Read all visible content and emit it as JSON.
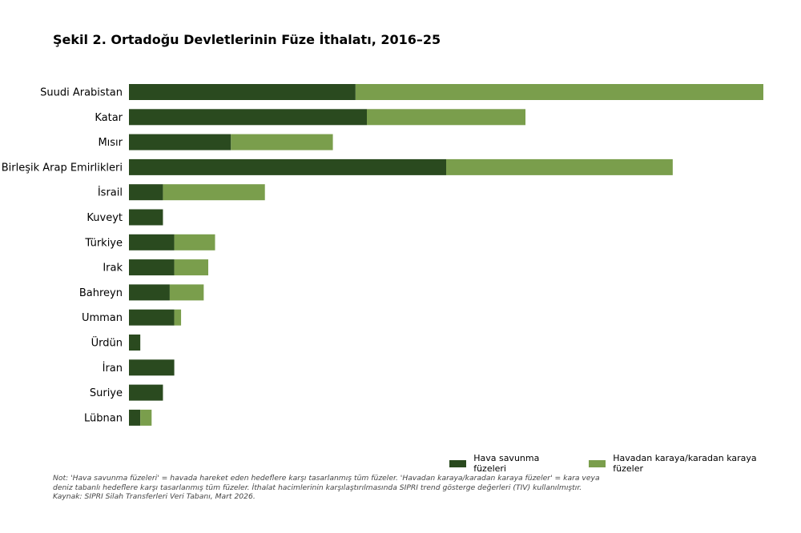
{
  "title": "Şekil 2. Ortadoğu Devletlerinin Füze İthalatı, 2016–25",
  "colors": {
    "air_defense": "#2a4a1f",
    "surface": "#7a9e4c"
  },
  "chart_data": {
    "type": "bar",
    "orientation": "horizontal",
    "stacked": true,
    "title": "Şekil 2. Ortadoğu Devletlerinin Füze İthalatı, 2016–25",
    "xlabel": "",
    "ylabel": "",
    "xlim": [
      0,
      56
    ],
    "grid": false,
    "legend_position": "bottom-right",
    "categories": [
      "Suudi Arabistan",
      "Katar",
      "Mısır",
      "Birleşik Arap Emirlikleri",
      "İsrail",
      "Kuveyt",
      "Türkiye",
      "Irak",
      "Bahreyn",
      "Umman",
      "Ürdün",
      "İran",
      "Suriye",
      "Lübnan"
    ],
    "series": [
      {
        "name": "Hava savunma füzeleri",
        "color": "#2a4a1f",
        "values": [
          20,
          21,
          9,
          28,
          3,
          3,
          4,
          4,
          3.6,
          4,
          1,
          4,
          3,
          1
        ]
      },
      {
        "name": "Havadan karaya/karadan karaya füzeler",
        "color": "#7a9e4c",
        "values": [
          36,
          14,
          9,
          20,
          9,
          0,
          3.6,
          3,
          3,
          0.6,
          0,
          0,
          0,
          1
        ]
      }
    ]
  },
  "legend": [
    {
      "label": "Hava savunma füzeleri",
      "color": "#2a4a1f"
    },
    {
      "label": "Havadan karaya/karadan karaya füzeler",
      "color": "#7a9e4c"
    }
  ],
  "note": {
    "line1": "Not: 'Hava savunma füzeleri' = havada hareket eden hedeflere karşı tasarlanmış tüm füzeler. 'Havadan karaya/karadan karaya füzeler' = kara veya",
    "line2": "deniz tabanlı hedeflere karşı tasarlanmış tüm füzeler. İthalat hacimlerinin karşılaştırılmasında SIPRI trend gösterge değerleri (TIV) kullanılmıştır.",
    "line3": "Kaynak: SIPRI Silah Transferleri Veri Tabanı, Mart 2026."
  }
}
